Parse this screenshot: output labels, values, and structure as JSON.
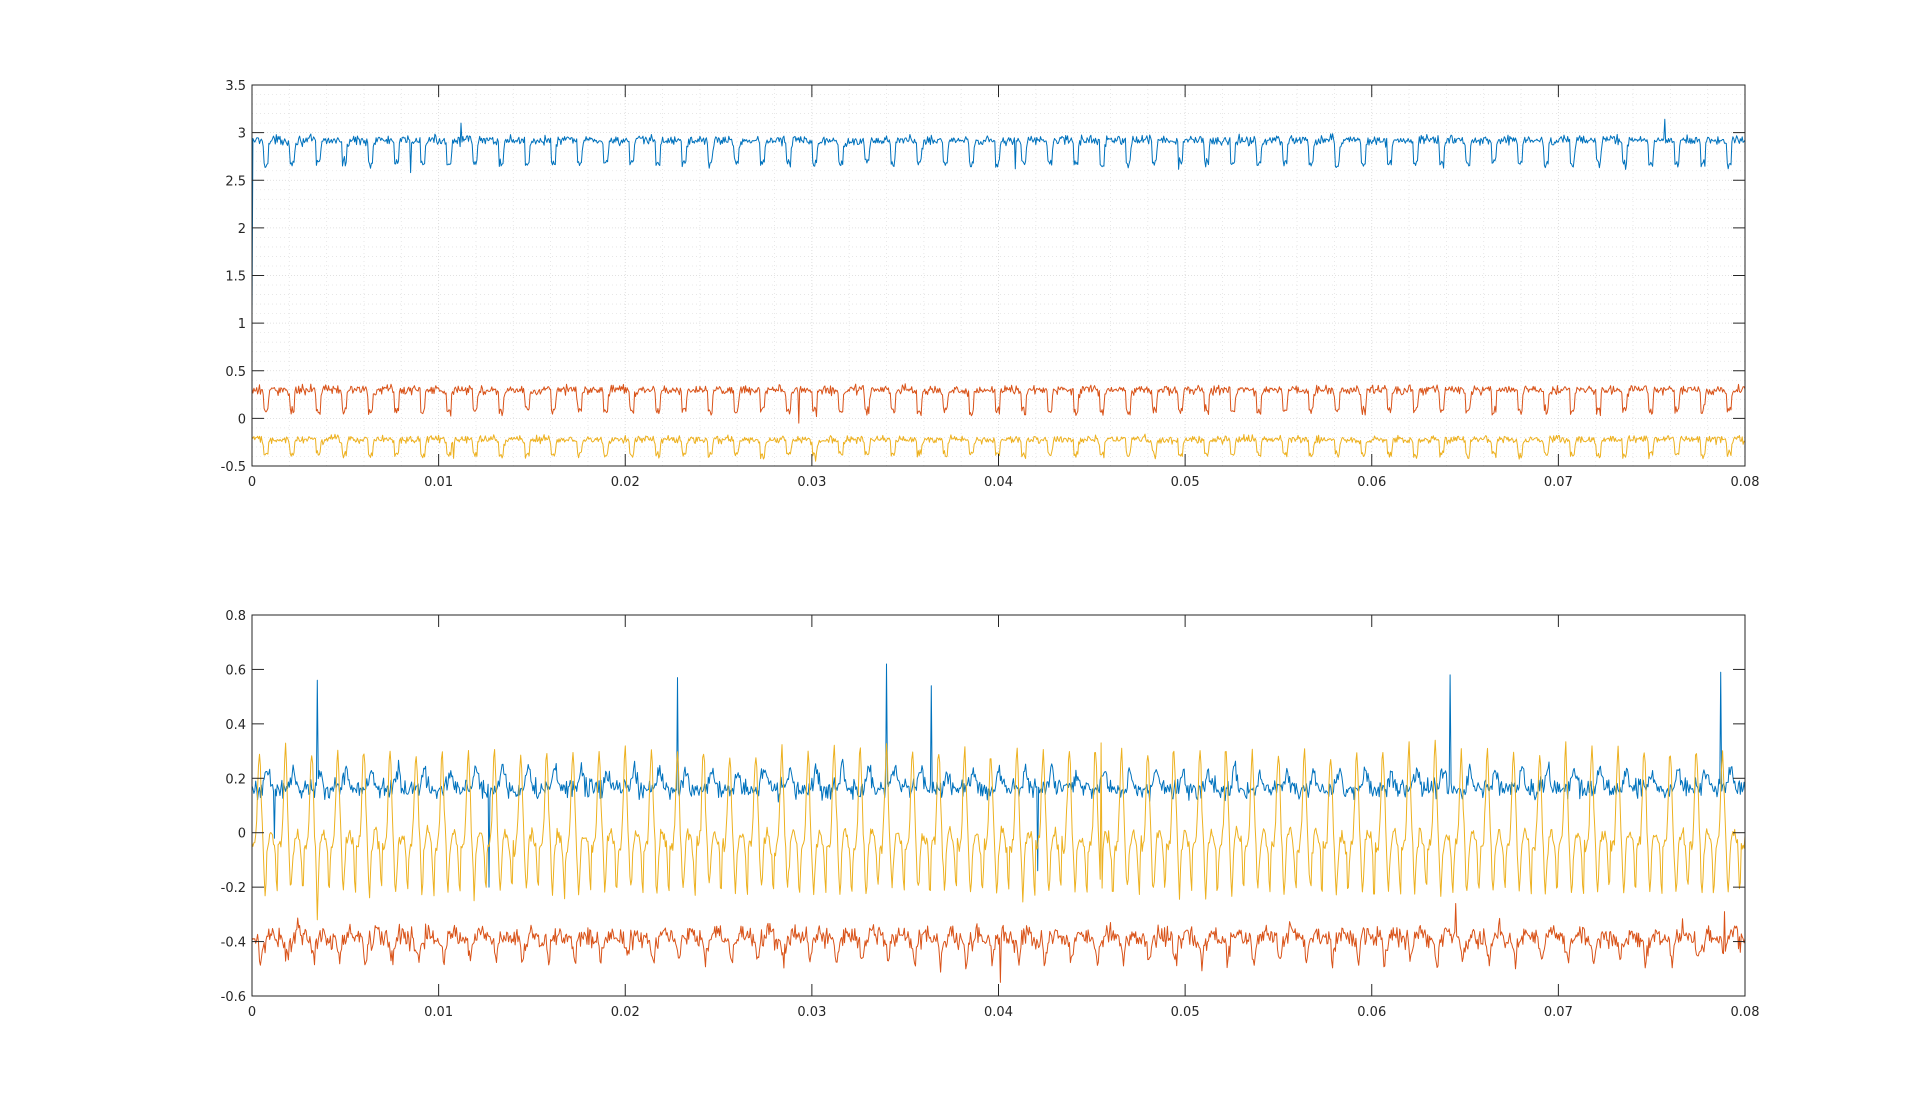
{
  "chart_data": [
    {
      "type": "line",
      "xlim": [
        0,
        0.08
      ],
      "ylim": [
        -0.5,
        3.5
      ],
      "grid": true,
      "minor_grid": true,
      "x_ticks": [
        0,
        0.01,
        0.02,
        0.03,
        0.04,
        0.05,
        0.06,
        0.07,
        0.08
      ],
      "x_tick_labels": [
        "0",
        "0.01",
        "0.02",
        "0.03",
        "0.04",
        "0.05",
        "0.06",
        "0.07",
        "0.08"
      ],
      "y_ticks": [
        -0.5,
        0,
        0.5,
        1,
        1.5,
        2,
        2.5,
        3,
        3.5
      ],
      "y_tick_labels": [
        "-0.5",
        "0",
        "0.5",
        "1",
        "1.5",
        "2",
        "2.5",
        "3",
        "3.5"
      ],
      "series": [
        {
          "color": "#0072BD",
          "baseline": 2.92,
          "dip": 2.68,
          "period": 0.0014,
          "noise": 0.025,
          "spikes": [
            [
              0.0112,
              3.1
            ],
            [
              0.0085,
              2.58
            ],
            [
              0.0409,
              2.62
            ],
            [
              0.0757,
              3.14
            ]
          ]
        },
        {
          "color": "#D95319",
          "baseline": 0.3,
          "dip": 0.08,
          "period": 0.0014,
          "noise": 0.025,
          "spikes": [
            [
              0.0293,
              -0.05
            ],
            [
              0.0635,
              0.35
            ]
          ]
        },
        {
          "color": "#EDB120",
          "baseline": -0.22,
          "dip": -0.38,
          "period": 0.0014,
          "noise": 0.02,
          "spikes": [
            [
              0.0108,
              -0.42
            ],
            [
              0.0302,
              -0.45
            ]
          ]
        }
      ]
    },
    {
      "type": "line",
      "xlim": [
        0,
        0.08
      ],
      "ylim": [
        -0.6,
        0.8
      ],
      "grid": false,
      "x_ticks": [
        0,
        0.01,
        0.02,
        0.03,
        0.04,
        0.05,
        0.06,
        0.07,
        0.08
      ],
      "x_tick_labels": [
        "0",
        "0.01",
        "0.02",
        "0.03",
        "0.04",
        "0.05",
        "0.06",
        "0.07",
        "0.08"
      ],
      "y_ticks": [
        -0.6,
        -0.4,
        -0.2,
        0,
        0.2,
        0.4,
        0.6,
        0.8
      ],
      "y_tick_labels": [
        "-0.6",
        "-0.4",
        "-0.2",
        "0",
        "0.2",
        "0.4",
        "0.6",
        "0.8"
      ],
      "series": [
        {
          "color": "#0072BD",
          "baseline": 0.16,
          "peak": 0.23,
          "period": 0.0014,
          "noise": 0.018,
          "spikes": [
            [
              0.0035,
              0.56
            ],
            [
              0.0228,
              0.57
            ],
            [
              0.034,
              0.62
            ],
            [
              0.0364,
              0.54
            ],
            [
              0.0642,
              0.58
            ],
            [
              0.0787,
              0.59
            ],
            [
              0.0012,
              -0.02
            ],
            [
              0.0127,
              -0.2
            ],
            [
              0.0421,
              -0.14
            ]
          ]
        },
        {
          "color": "#D95319",
          "baseline": -0.39,
          "low": -0.47,
          "period": 0.0014,
          "noise": 0.018,
          "spikes": [
            [
              0.0401,
              -0.55
            ],
            [
              0.0645,
              -0.26
            ],
            [
              0.0789,
              -0.29
            ]
          ]
        },
        {
          "color": "#EDB120",
          "high": 0.3,
          "low": -0.22,
          "mid": -0.05,
          "period": 0.0014,
          "noise": 0.015,
          "spikes": [
            [
              0.0035,
              -0.32
            ],
            [
              0.0455,
              0.33
            ]
          ]
        }
      ]
    }
  ]
}
